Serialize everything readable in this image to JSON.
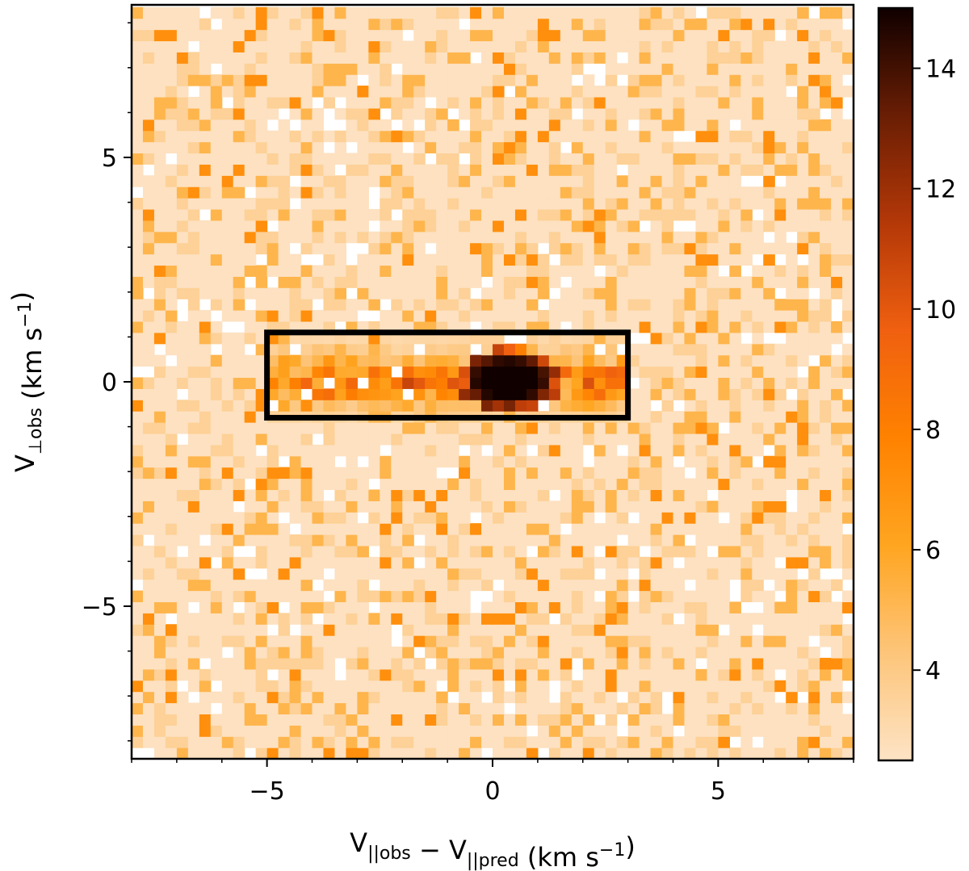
{
  "chart_data": {
    "type": "heatmap",
    "title": "",
    "xlabel": {
      "parts": [
        {
          "t": "V",
          "sub": "||obs"
        },
        {
          "t": " − V",
          "sub": "||pred"
        },
        {
          "t": "    (km s",
          "sup": "−1"
        },
        {
          "t": ")"
        }
      ]
    },
    "ylabel": {
      "parts": [
        {
          "t": "V",
          "sub": "⊥obs"
        },
        {
          "t": "    (km s",
          "sup": "−1"
        },
        {
          "t": ")"
        }
      ]
    },
    "xlim": [
      -8,
      8
    ],
    "ylim": [
      -8.4,
      8.4
    ],
    "xticks": [
      {
        "value": -5,
        "label": "−5"
      },
      {
        "value": 0,
        "label": "0"
      },
      {
        "value": 5,
        "label": "5"
      }
    ],
    "yticks": [
      {
        "value": 5,
        "label": "5"
      },
      {
        "value": 0,
        "label": "0"
      },
      {
        "value": -5,
        "label": "−5"
      }
    ],
    "bin_size_kms": 0.25,
    "selection_box": {
      "x": [
        -5,
        3
      ],
      "y": [
        -0.8,
        1.1
      ]
    },
    "colorbar": {
      "vmin": 2.5,
      "vmax": 15,
      "ticks": [
        {
          "value": 4,
          "label": "4"
        },
        {
          "value": 6,
          "label": "6"
        },
        {
          "value": 8,
          "label": "8"
        },
        {
          "value": 10,
          "label": "10"
        },
        {
          "value": 12,
          "label": "12"
        },
        {
          "value": 14,
          "label": "14"
        }
      ],
      "colors": [
        "#fde3c5",
        "#fdc57a",
        "#ffa520",
        "#ff8200",
        "#f06010",
        "#b43808",
        "#6a1e04",
        "#100000"
      ]
    },
    "gridlines": false,
    "legend": "none"
  }
}
